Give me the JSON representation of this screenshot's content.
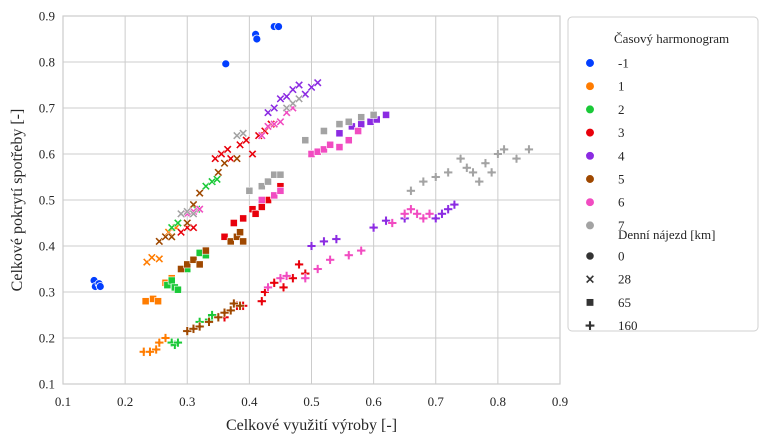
{
  "chart_data": {
    "type": "scatter",
    "xlabel": "Celkové využití výroby [-]",
    "ylabel": "Celkové pokrytí spotřeby [-]",
    "xlim": [
      0.1,
      0.9
    ],
    "ylim": [
      0.1,
      0.9
    ],
    "xticks": [
      "0.1",
      "0.2",
      "0.3",
      "0.4",
      "0.5",
      "0.6",
      "0.7",
      "0.8",
      "0.9"
    ],
    "yticks": [
      "0.1",
      "0.2",
      "0.3",
      "0.4",
      "0.5",
      "0.6",
      "0.7",
      "0.8",
      "0.9"
    ],
    "grid": true,
    "legend_position": "outside-right",
    "hue_legend_title": "Časový harmonogram",
    "style_legend_title": "Denní nájezd [km]",
    "hue_levels": [
      {
        "label": "-1",
        "color": "#023eff"
      },
      {
        "label": "1",
        "color": "#ff7c00"
      },
      {
        "label": "2",
        "color": "#1ac938"
      },
      {
        "label": "3",
        "color": "#e8000b"
      },
      {
        "label": "4",
        "color": "#8b2be2"
      },
      {
        "label": "5",
        "color": "#9f4800"
      },
      {
        "label": "6",
        "color": "#f14cc1"
      },
      {
        "label": "7",
        "color": "#a3a3a3"
      }
    ],
    "style_levels": [
      {
        "label": "0",
        "marker": "circle"
      },
      {
        "label": "28",
        "marker": "x"
      },
      {
        "label": "65",
        "marker": "square"
      },
      {
        "label": "160",
        "marker": "plus"
      }
    ],
    "series": [
      {
        "hue": "-1",
        "style": "0",
        "points": [
          [
            0.15,
            0.325
          ],
          [
            0.152,
            0.312
          ],
          [
            0.158,
            0.318
          ],
          [
            0.16,
            0.312
          ],
          [
            0.362,
            0.796
          ],
          [
            0.41,
            0.86
          ],
          [
            0.412,
            0.85
          ],
          [
            0.44,
            0.877
          ],
          [
            0.447,
            0.877
          ]
        ]
      },
      {
        "hue": "1",
        "style": "28",
        "points": [
          [
            0.235,
            0.365
          ],
          [
            0.243,
            0.375
          ],
          [
            0.255,
            0.372
          ],
          [
            0.27,
            0.43
          ],
          [
            0.282,
            0.44
          ]
        ]
      },
      {
        "hue": "1",
        "style": "65",
        "points": [
          [
            0.233,
            0.28
          ],
          [
            0.245,
            0.285
          ],
          [
            0.253,
            0.28
          ],
          [
            0.265,
            0.32
          ],
          [
            0.275,
            0.33
          ]
        ]
      },
      {
        "hue": "1",
        "style": "160",
        "points": [
          [
            0.23,
            0.17
          ],
          [
            0.24,
            0.17
          ],
          [
            0.25,
            0.175
          ],
          [
            0.255,
            0.19
          ],
          [
            0.265,
            0.2
          ]
        ]
      },
      {
        "hue": "2",
        "style": "28",
        "points": [
          [
            0.275,
            0.44
          ],
          [
            0.285,
            0.45
          ],
          [
            0.3,
            0.47
          ],
          [
            0.31,
            0.49
          ],
          [
            0.315,
            0.48
          ],
          [
            0.33,
            0.53
          ],
          [
            0.34,
            0.54
          ],
          [
            0.348,
            0.545
          ]
        ]
      },
      {
        "hue": "2",
        "style": "65",
        "points": [
          [
            0.268,
            0.315
          ],
          [
            0.275,
            0.325
          ],
          [
            0.28,
            0.31
          ],
          [
            0.285,
            0.305
          ],
          [
            0.3,
            0.35
          ],
          [
            0.31,
            0.37
          ],
          [
            0.32,
            0.385
          ],
          [
            0.33,
            0.38
          ]
        ]
      },
      {
        "hue": "2",
        "style": "160",
        "points": [
          [
            0.275,
            0.19
          ],
          [
            0.28,
            0.185
          ],
          [
            0.285,
            0.19
          ],
          [
            0.31,
            0.22
          ],
          [
            0.32,
            0.235
          ],
          [
            0.335,
            0.24
          ],
          [
            0.34,
            0.25
          ]
        ]
      },
      {
        "hue": "3",
        "style": "28",
        "points": [
          [
            0.29,
            0.43
          ],
          [
            0.3,
            0.44
          ],
          [
            0.31,
            0.44
          ],
          [
            0.345,
            0.59
          ],
          [
            0.355,
            0.6
          ],
          [
            0.365,
            0.61
          ],
          [
            0.37,
            0.59
          ],
          [
            0.385,
            0.62
          ],
          [
            0.395,
            0.63
          ],
          [
            0.405,
            0.6
          ],
          [
            0.415,
            0.64
          ],
          [
            0.425,
            0.65
          ],
          [
            0.435,
            0.665
          ]
        ]
      },
      {
        "hue": "3",
        "style": "65",
        "points": [
          [
            0.36,
            0.42
          ],
          [
            0.375,
            0.45
          ],
          [
            0.39,
            0.46
          ],
          [
            0.405,
            0.48
          ],
          [
            0.41,
            0.47
          ],
          [
            0.42,
            0.485
          ],
          [
            0.43,
            0.5
          ],
          [
            0.44,
            0.51
          ],
          [
            0.45,
            0.53
          ]
        ]
      },
      {
        "hue": "3",
        "style": "160",
        "points": [
          [
            0.36,
            0.245
          ],
          [
            0.38,
            0.27
          ],
          [
            0.39,
            0.27
          ],
          [
            0.42,
            0.28
          ],
          [
            0.425,
            0.3
          ],
          [
            0.43,
            0.31
          ],
          [
            0.44,
            0.32
          ],
          [
            0.455,
            0.31
          ],
          [
            0.47,
            0.33
          ],
          [
            0.48,
            0.36
          ],
          [
            0.49,
            0.34
          ]
        ]
      },
      {
        "hue": "4",
        "style": "28",
        "points": [
          [
            0.43,
            0.69
          ],
          [
            0.44,
            0.7
          ],
          [
            0.45,
            0.72
          ],
          [
            0.46,
            0.725
          ],
          [
            0.47,
            0.74
          ],
          [
            0.48,
            0.75
          ],
          [
            0.49,
            0.73
          ],
          [
            0.5,
            0.745
          ],
          [
            0.51,
            0.755
          ]
        ]
      },
      {
        "hue": "4",
        "style": "65",
        "points": [
          [
            0.545,
            0.645
          ],
          [
            0.565,
            0.66
          ],
          [
            0.58,
            0.665
          ],
          [
            0.595,
            0.67
          ],
          [
            0.605,
            0.675
          ],
          [
            0.62,
            0.685
          ]
        ]
      },
      {
        "hue": "4",
        "style": "160",
        "points": [
          [
            0.5,
            0.4
          ],
          [
            0.52,
            0.41
          ],
          [
            0.54,
            0.415
          ],
          [
            0.6,
            0.44
          ],
          [
            0.62,
            0.455
          ],
          [
            0.65,
            0.46
          ],
          [
            0.7,
            0.46
          ],
          [
            0.71,
            0.47
          ],
          [
            0.72,
            0.48
          ],
          [
            0.73,
            0.49
          ]
        ]
      },
      {
        "hue": "5",
        "style": "28",
        "points": [
          [
            0.255,
            0.41
          ],
          [
            0.265,
            0.42
          ],
          [
            0.275,
            0.42
          ],
          [
            0.3,
            0.45
          ],
          [
            0.31,
            0.49
          ],
          [
            0.32,
            0.515
          ],
          [
            0.35,
            0.56
          ],
          [
            0.36,
            0.58
          ],
          [
            0.38,
            0.59
          ]
        ]
      },
      {
        "hue": "5",
        "style": "65",
        "points": [
          [
            0.29,
            0.35
          ],
          [
            0.3,
            0.36
          ],
          [
            0.31,
            0.37
          ],
          [
            0.32,
            0.36
          ],
          [
            0.33,
            0.39
          ],
          [
            0.37,
            0.41
          ],
          [
            0.38,
            0.42
          ],
          [
            0.385,
            0.43
          ],
          [
            0.39,
            0.41
          ]
        ]
      },
      {
        "hue": "5",
        "style": "160",
        "points": [
          [
            0.3,
            0.215
          ],
          [
            0.31,
            0.22
          ],
          [
            0.32,
            0.225
          ],
          [
            0.335,
            0.235
          ],
          [
            0.35,
            0.245
          ],
          [
            0.36,
            0.255
          ],
          [
            0.37,
            0.26
          ],
          [
            0.375,
            0.275
          ],
          [
            0.385,
            0.27
          ]
        ]
      },
      {
        "hue": "6",
        "style": "28",
        "points": [
          [
            0.3,
            0.47
          ],
          [
            0.31,
            0.475
          ],
          [
            0.32,
            0.48
          ],
          [
            0.42,
            0.64
          ],
          [
            0.43,
            0.66
          ],
          [
            0.44,
            0.665
          ],
          [
            0.45,
            0.67
          ],
          [
            0.46,
            0.69
          ],
          [
            0.47,
            0.7
          ]
        ]
      },
      {
        "hue": "6",
        "style": "65",
        "points": [
          [
            0.42,
            0.5
          ],
          [
            0.44,
            0.51
          ],
          [
            0.45,
            0.52
          ],
          [
            0.5,
            0.6
          ],
          [
            0.51,
            0.605
          ],
          [
            0.52,
            0.61
          ],
          [
            0.53,
            0.62
          ],
          [
            0.545,
            0.615
          ],
          [
            0.56,
            0.63
          ],
          [
            0.575,
            0.65
          ]
        ]
      },
      {
        "hue": "6",
        "style": "160",
        "points": [
          [
            0.43,
            0.31
          ],
          [
            0.45,
            0.33
          ],
          [
            0.46,
            0.335
          ],
          [
            0.49,
            0.33
          ],
          [
            0.51,
            0.35
          ],
          [
            0.53,
            0.37
          ],
          [
            0.56,
            0.38
          ],
          [
            0.58,
            0.39
          ],
          [
            0.63,
            0.45
          ],
          [
            0.65,
            0.47
          ],
          [
            0.66,
            0.48
          ],
          [
            0.67,
            0.47
          ],
          [
            0.68,
            0.46
          ],
          [
            0.69,
            0.47
          ]
        ]
      },
      {
        "hue": "7",
        "style": "28",
        "points": [
          [
            0.29,
            0.47
          ],
          [
            0.3,
            0.475
          ],
          [
            0.31,
            0.47
          ],
          [
            0.38,
            0.64
          ],
          [
            0.39,
            0.645
          ],
          [
            0.46,
            0.7
          ],
          [
            0.47,
            0.71
          ],
          [
            0.48,
            0.72
          ]
        ]
      },
      {
        "hue": "7",
        "style": "65",
        "points": [
          [
            0.4,
            0.52
          ],
          [
            0.42,
            0.53
          ],
          [
            0.43,
            0.54
          ],
          [
            0.44,
            0.555
          ],
          [
            0.45,
            0.555
          ],
          [
            0.49,
            0.63
          ],
          [
            0.52,
            0.65
          ],
          [
            0.545,
            0.665
          ],
          [
            0.56,
            0.67
          ],
          [
            0.58,
            0.68
          ],
          [
            0.6,
            0.685
          ]
        ]
      },
      {
        "hue": "7",
        "style": "160",
        "points": [
          [
            0.66,
            0.52
          ],
          [
            0.68,
            0.54
          ],
          [
            0.7,
            0.55
          ],
          [
            0.72,
            0.56
          ],
          [
            0.74,
            0.59
          ],
          [
            0.75,
            0.57
          ],
          [
            0.76,
            0.56
          ],
          [
            0.77,
            0.54
          ],
          [
            0.78,
            0.58
          ],
          [
            0.79,
            0.56
          ],
          [
            0.8,
            0.6
          ],
          [
            0.81,
            0.61
          ],
          [
            0.83,
            0.59
          ],
          [
            0.85,
            0.61
          ]
        ]
      }
    ]
  }
}
